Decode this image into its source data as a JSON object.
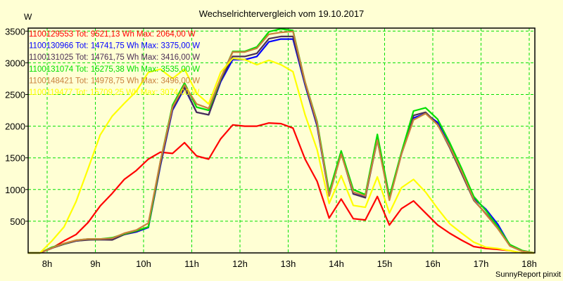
{
  "chart_data": {
    "type": "line",
    "title": "Wechselrichtervergleich vom 19.10.2017",
    "ylabel": "W",
    "xlabel": "",
    "footer": "SunnyReport pinxit",
    "ylim": [
      0,
      3500
    ],
    "xlim": [
      7.6,
      18.12
    ],
    "grid": true,
    "legend_position": "top-left",
    "x_ticks": [
      8,
      9,
      10,
      11,
      12,
      13,
      14,
      15,
      16,
      17,
      18
    ],
    "x_tick_labels": [
      "8h",
      "9h",
      "10h",
      "11h",
      "12h",
      "13h",
      "14h",
      "15h",
      "16h",
      "17h",
      "18h"
    ],
    "y_ticks": [
      500,
      1000,
      1500,
      2000,
      2500,
      3000,
      3500
    ],
    "y_tick_labels": [
      "500",
      "1000",
      "1500",
      "2000",
      "2500",
      "3000",
      "3500"
    ],
    "x": [
      7.6,
      7.85,
      8.1,
      8.35,
      8.6,
      8.85,
      9.1,
      9.35,
      9.6,
      9.85,
      10.1,
      10.35,
      10.6,
      10.85,
      11.1,
      11.35,
      11.6,
      11.85,
      12.1,
      12.35,
      12.6,
      12.85,
      13.1,
      13.35,
      13.6,
      13.85,
      14.1,
      14.35,
      14.6,
      14.85,
      15.1,
      15.35,
      15.6,
      15.85,
      16.1,
      16.35,
      16.6,
      16.85,
      17.1,
      17.35,
      17.6,
      17.85,
      18.1
    ],
    "series": [
      {
        "name": "1100129553",
        "legend": "1100129553 Tot: 9521,13 Wh Max: 2064,00 W",
        "color": "#ff0000",
        "values": [
          0,
          0,
          75,
          190,
          290,
          480,
          740,
          940,
          1160,
          1300,
          1480,
          1590,
          1570,
          1740,
          1530,
          1480,
          1800,
          2020,
          2000,
          2000,
          2050,
          2040,
          1970,
          1480,
          1130,
          550,
          850,
          540,
          520,
          890,
          440,
          700,
          820,
          630,
          440,
          310,
          200,
          100,
          70,
          55,
          35,
          0,
          0
        ]
      },
      {
        "name": "1100130966",
        "legend": "1100130966 Tot: 14741,75 Wh Max: 3375,00 W",
        "color": "#0000ff",
        "values": [
          0,
          0,
          80,
          140,
          190,
          210,
          215,
          220,
          290,
          330,
          400,
          1380,
          2250,
          2600,
          2220,
          2180,
          2700,
          3050,
          3050,
          3100,
          3330,
          3375,
          3375,
          2650,
          2000,
          900,
          1580,
          930,
          880,
          1780,
          850,
          1560,
          2130,
          2200,
          2060,
          1700,
          1300,
          860,
          690,
          450,
          120,
          30,
          0
        ]
      },
      {
        "name": "1100131025",
        "legend": "1100131025 Tot: 14761,75 Wh Max: 3416,00 W",
        "color": "#4b2f55",
        "values": [
          0,
          0,
          75,
          140,
          190,
          205,
          210,
          205,
          290,
          340,
          410,
          1400,
          2270,
          2620,
          2220,
          2180,
          2720,
          3100,
          3100,
          3150,
          3380,
          3416,
          3416,
          2670,
          2020,
          920,
          1580,
          930,
          870,
          1790,
          850,
          1570,
          2170,
          2220,
          2030,
          1660,
          1250,
          830,
          620,
          390,
          110,
          30,
          0
        ]
      },
      {
        "name": "1100131074",
        "legend": "1100131074 Tot: 15275,38 Wh Max: 3535,00 W",
        "color": "#00e000",
        "values": [
          0,
          0,
          90,
          145,
          200,
          220,
          220,
          240,
          300,
          350,
          410,
          1450,
          2330,
          2680,
          2300,
          2250,
          2750,
          3180,
          3180,
          3250,
          3490,
          3535,
          3510,
          2700,
          2070,
          960,
          1610,
          1000,
          920,
          1870,
          890,
          1590,
          2240,
          2290,
          2110,
          1740,
          1330,
          890,
          670,
          410,
          130,
          40,
          0
        ]
      },
      {
        "name": "1100148421",
        "legend": "1100148421 Tot: 14978,75 Wh Max: 3496,00 W",
        "color": "#c8803c",
        "values": [
          0,
          0,
          80,
          150,
          200,
          220,
          220,
          230,
          310,
          360,
          470,
          1450,
          2300,
          2650,
          2350,
          2280,
          2760,
          3170,
          3170,
          3230,
          3450,
          3480,
          3496,
          2700,
          2050,
          900,
          1560,
          960,
          900,
          1780,
          830,
          1560,
          2100,
          2200,
          2020,
          1680,
          1280,
          840,
          610,
          380,
          110,
          30,
          0
        ]
      },
      {
        "name": "1100119477",
        "legend": "1100119477 Tot: 15709,25 Wh Max: 3074,00 W",
        "color": "#ffff00",
        "values": [
          0,
          0,
          190,
          410,
          810,
          1330,
          1860,
          2160,
          2360,
          2550,
          2850,
          2900,
          2750,
          2900,
          2520,
          2350,
          2850,
          3070,
          3050,
          2970,
          3040,
          2970,
          2860,
          2180,
          1630,
          780,
          1220,
          750,
          720,
          1200,
          630,
          1030,
          1160,
          960,
          700,
          460,
          310,
          170,
          90,
          70,
          35,
          0,
          0
        ]
      }
    ]
  }
}
